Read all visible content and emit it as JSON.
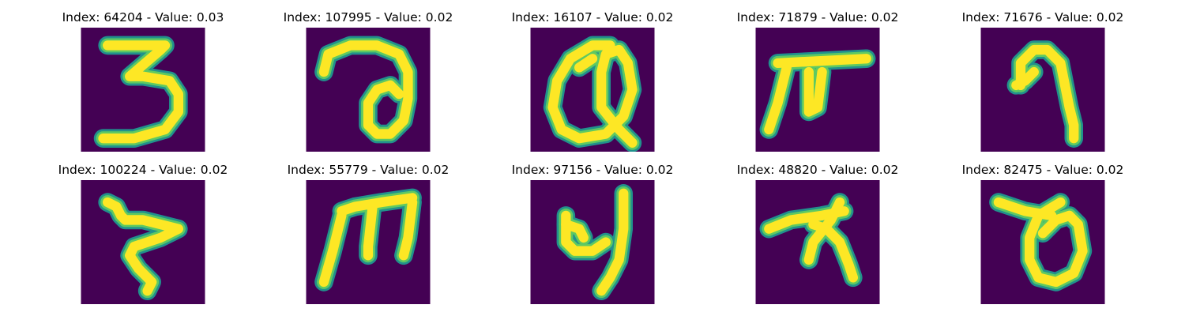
{
  "colors": {
    "background": "#440154",
    "stroke_core": "#fde725",
    "stroke_mid": "#5ec962",
    "stroke_edge": "#21918c"
  },
  "panels": [
    {
      "title": "Index: 64204 - Value: 0.03",
      "glyph": "handwritten-3"
    },
    {
      "title": "Index: 107995 - Value: 0.02",
      "glyph": "handwritten-loop-a"
    },
    {
      "title": "Index: 16107 - Value: 0.02",
      "glyph": "handwritten-loop-q"
    },
    {
      "title": "Index: 71879 - Value: 0.02",
      "glyph": "handwritten-pi-like"
    },
    {
      "title": "Index: 71676 - Value: 0.02",
      "glyph": "handwritten-9-like"
    },
    {
      "title": "Index: 100224 - Value: 0.02",
      "glyph": "handwritten-z-like"
    },
    {
      "title": "Index: 55779 - Value: 0.02",
      "glyph": "handwritten-m-like"
    },
    {
      "title": "Index: 97156 - Value: 0.02",
      "glyph": "handwritten-4-like"
    },
    {
      "title": "Index: 48820 - Value: 0.02",
      "glyph": "handwritten-x-bar"
    },
    {
      "title": "Index: 82475 - Value: 0.02",
      "glyph": "handwritten-theta-like"
    }
  ]
}
